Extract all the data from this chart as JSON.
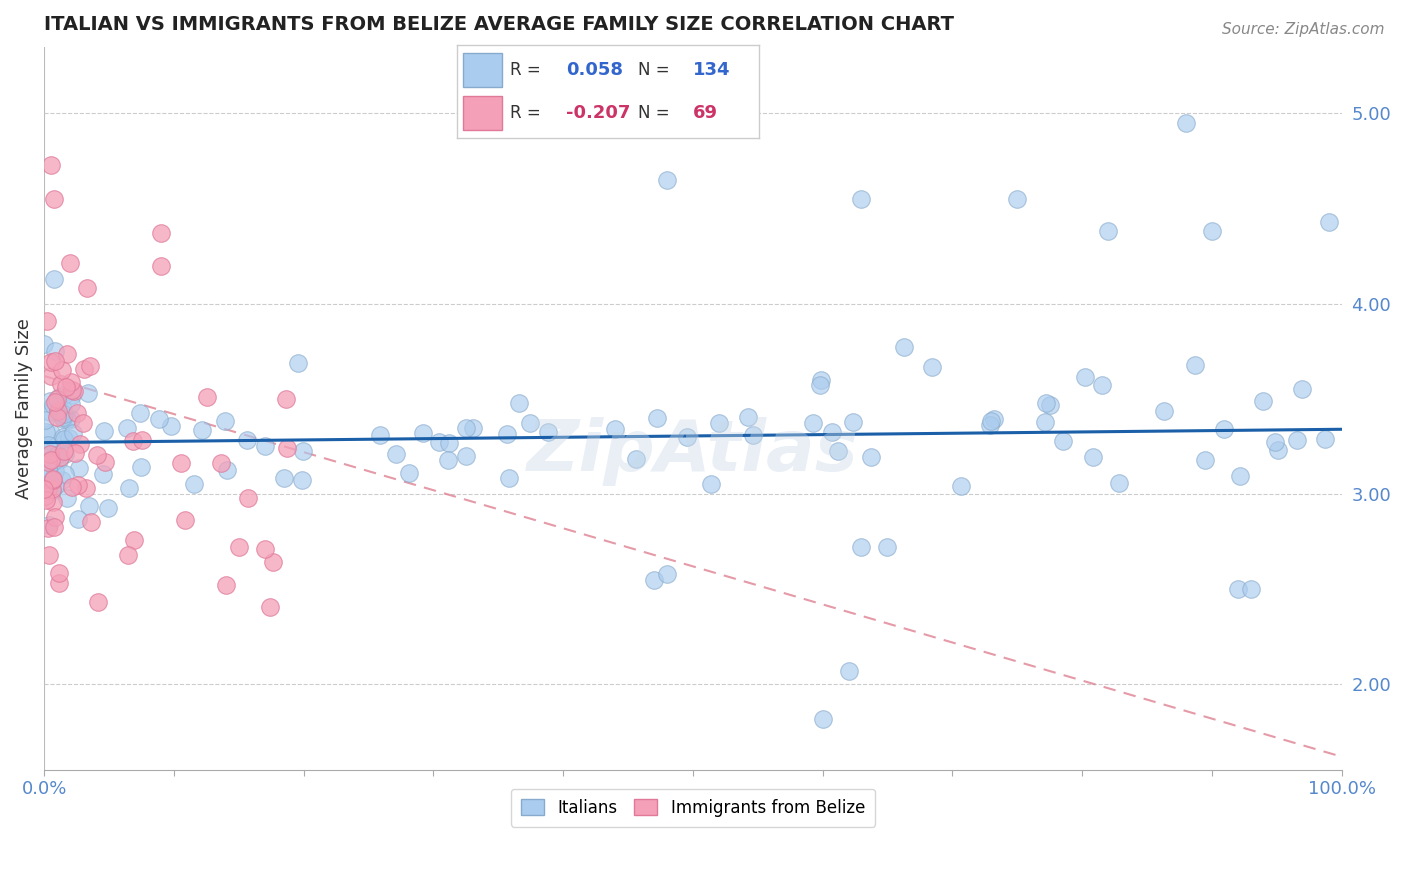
{
  "title": "ITALIAN VS IMMIGRANTS FROM BELIZE AVERAGE FAMILY SIZE CORRELATION CHART",
  "source": "Source: ZipAtlas.com",
  "ylabel": "Average Family Size",
  "xlim": [
    0.0,
    1.0
  ],
  "ylim": [
    1.55,
    5.35
  ],
  "yticks": [
    2.0,
    3.0,
    4.0,
    5.0
  ],
  "xticks": [
    0.0,
    0.1,
    0.2,
    0.3,
    0.4,
    0.5,
    0.6,
    0.7,
    0.8,
    0.9,
    1.0
  ],
  "xticklabels_visible": {
    "0.0": "0.0%",
    "1.0": "100.0%"
  },
  "italian_color": "#aaccee",
  "italian_edge": "#88aacc",
  "belize_color": "#f4a0b8",
  "belize_edge": "#e07898",
  "trend_italian_color": "#1a5fa8",
  "trend_belize_color": "#e08898",
  "legend_r_italian": "0.058",
  "legend_n_italian": "134",
  "legend_r_belize": "-0.207",
  "legend_n_belize": "69",
  "legend_value_color_italian": "#3366cc",
  "legend_value_color_belize": "#cc3366",
  "legend_label_color": "#333333",
  "background_color": "#ffffff",
  "grid_color": "#cccccc",
  "axis_tick_color": "#5588cc",
  "watermark": "ZipAtlas",
  "watermark_color": "#c8d8e8",
  "source_color": "#888888"
}
